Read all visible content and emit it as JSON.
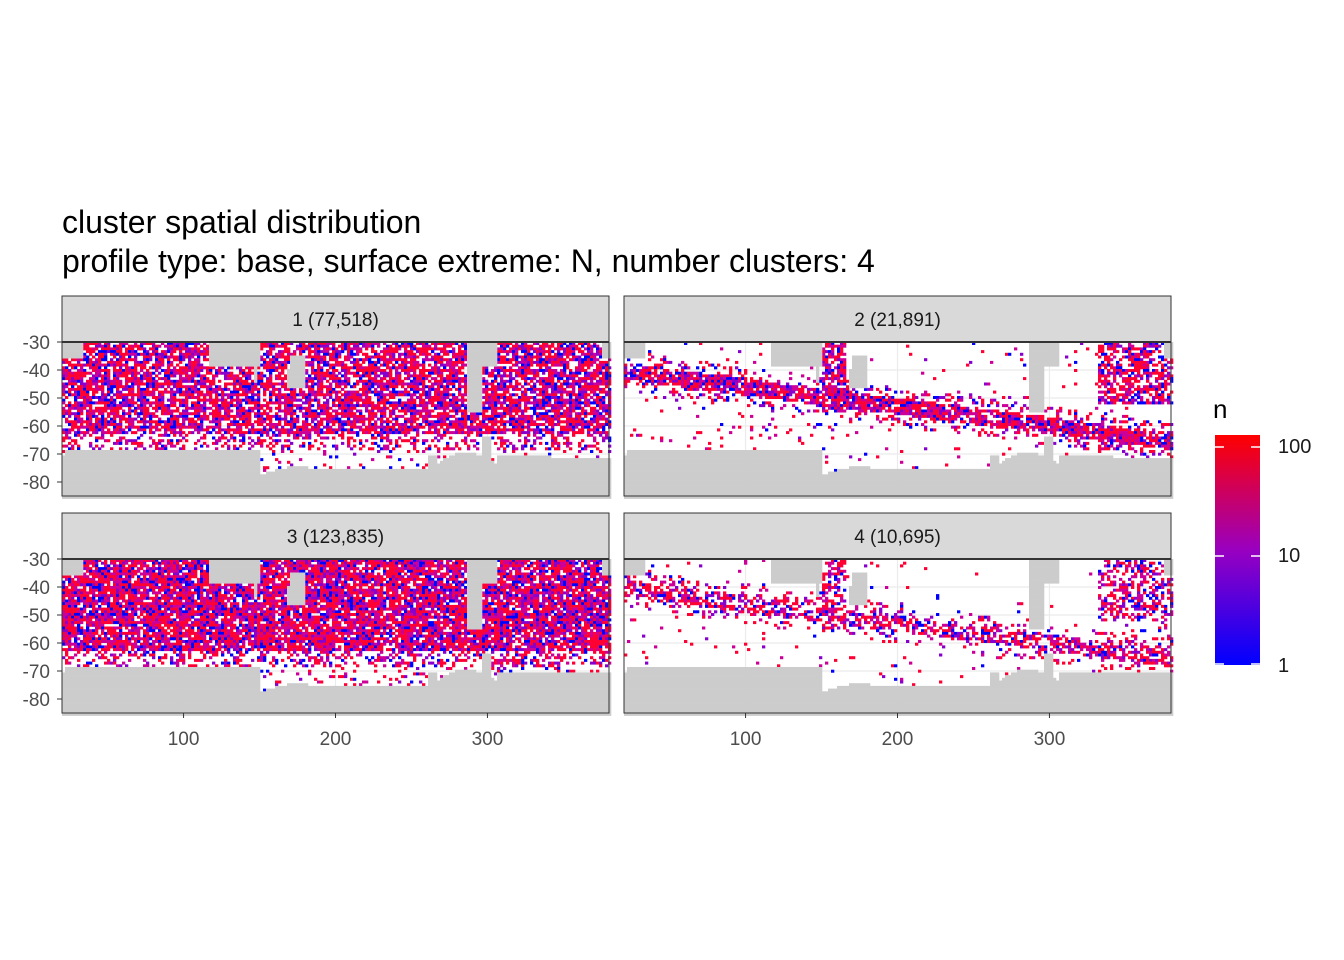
{
  "title": "cluster spatial distribution",
  "subtitle": "profile type: base, surface extreme: N, number clusters: 4",
  "legend": {
    "title": "n",
    "scale": "log10",
    "ticks": [
      "100",
      "10",
      "1"
    ],
    "low_color": "#0000FF",
    "high_color": "#FF0000"
  },
  "chart_data": {
    "type": "heatmap",
    "facet_labels": [
      "1 (77,518)",
      "2 (21,891)",
      "3 (123,835)",
      "4 (10,695)"
    ],
    "clusters": [
      {
        "cluster": 1,
        "count": 77518,
        "coverage": "dense",
        "description_level": 0.75
      },
      {
        "cluster": 2,
        "count": 21891,
        "coverage": "fronts",
        "description_level": 0.35
      },
      {
        "cluster": 3,
        "count": 123835,
        "coverage": "dense",
        "description_level": 0.85
      },
      {
        "cluster": 4,
        "count": 10695,
        "coverage": "fronts",
        "description_level": 0.25
      }
    ],
    "x_ticks": [
      100,
      200,
      300
    ],
    "y_ticks": [
      -30,
      -40,
      -50,
      -60,
      -70,
      -80
    ],
    "xlim": [
      20,
      380
    ],
    "ylim": [
      -85,
      -30
    ],
    "grid": true,
    "land_color": "#CCCCCC",
    "strip_color": "#D9D9D9",
    "legend_position": "right"
  }
}
